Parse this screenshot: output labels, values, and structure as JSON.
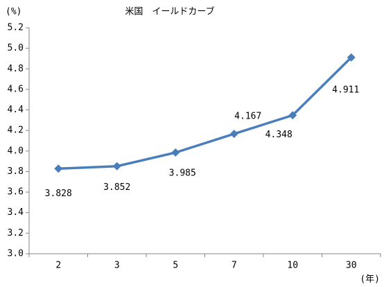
{
  "chart_data": {
    "type": "line",
    "title": "米国　イールドカーブ",
    "y_label": "(%)",
    "x_label": "(年)",
    "categories": [
      "2",
      "3",
      "5",
      "7",
      "10",
      "30"
    ],
    "series": [
      {
        "name": "米国",
        "color": "#4a7ebb",
        "values": [
          3.828,
          3.852,
          3.985,
          4.167,
          4.348,
          4.911
        ]
      }
    ],
    "ylim": [
      3.0,
      5.2
    ],
    "yticks": [
      {
        "value": 3.0,
        "label": "3.0"
      },
      3.2,
      3.4,
      3.6,
      3.8,
      {
        "value": 4.0,
        "label": "4.0"
      },
      4.2,
      4.4,
      4.6,
      4.8,
      {
        "value": 5.0,
        "label": "5.0"
      },
      5.2
    ],
    "grid": false
  }
}
